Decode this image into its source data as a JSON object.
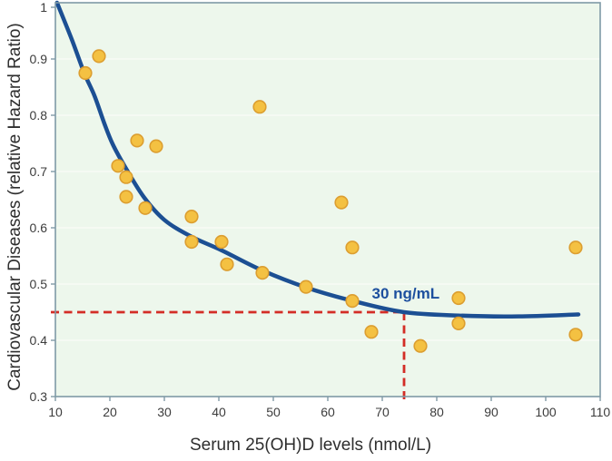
{
  "chart_data": {
    "type": "scatter",
    "title": "",
    "xlabel": "Serum 25(OH)D levels (nmol/L)",
    "ylabel": "Cardiovascular Diseases (relative Hazard Ratio)",
    "xlim": [
      10,
      110
    ],
    "ylim": [
      0.3,
      1.0
    ],
    "x_ticks": [
      10,
      20,
      30,
      40,
      50,
      60,
      70,
      80,
      90,
      100,
      110
    ],
    "y_ticks": [
      1,
      0.9,
      0.8,
      0.7,
      0.6,
      0.5,
      0.4,
      0.3
    ],
    "y_tick_labels": [
      "1",
      "0.9",
      "0.8",
      "0.7",
      "0.6",
      "0.5",
      "0.4",
      "0.3"
    ],
    "grid": "horizontal-faint",
    "legend": "none",
    "points": [
      [
        15.5,
        0.875
      ],
      [
        18,
        0.905
      ],
      [
        21.5,
        0.71
      ],
      [
        23,
        0.69
      ],
      [
        23,
        0.655
      ],
      [
        25,
        0.755
      ],
      [
        26.5,
        0.635
      ],
      [
        28.5,
        0.745
      ],
      [
        35,
        0.62
      ],
      [
        35,
        0.575
      ],
      [
        40.5,
        0.575
      ],
      [
        41.5,
        0.535
      ],
      [
        47.5,
        0.815
      ],
      [
        48,
        0.52
      ],
      [
        56,
        0.495
      ],
      [
        62.5,
        0.645
      ],
      [
        64.5,
        0.565
      ],
      [
        64.5,
        0.47
      ],
      [
        68,
        0.415
      ],
      [
        77,
        0.39
      ],
      [
        84,
        0.475
      ],
      [
        84,
        0.43
      ],
      [
        105.5,
        0.565
      ],
      [
        105.5,
        0.41
      ]
    ],
    "trend_curve": [
      [
        10.3,
        1.0
      ],
      [
        13,
        0.935
      ],
      [
        15.3,
        0.875
      ],
      [
        17.2,
        0.834
      ],
      [
        19,
        0.785
      ],
      [
        20.5,
        0.749
      ],
      [
        22.8,
        0.708
      ],
      [
        26.2,
        0.655
      ],
      [
        30,
        0.614
      ],
      [
        35,
        0.584
      ],
      [
        40.5,
        0.56
      ],
      [
        48,
        0.524
      ],
      [
        56,
        0.494
      ],
      [
        65,
        0.469
      ],
      [
        74,
        0.45
      ],
      [
        84,
        0.444
      ],
      [
        95,
        0.4425
      ],
      [
        106,
        0.446
      ]
    ],
    "reference_lines": {
      "h_y": 0.45,
      "v_x": 74,
      "style": "dashed"
    },
    "annotation": {
      "text": "30 ng/mL",
      "x": 74.3,
      "y": 0.484
    },
    "colors": {
      "plot_bg": "#edf7ec",
      "page_bg": "#ffffff",
      "axis": "#7f9aa6",
      "grid": "#f8fcf5",
      "curve": "#1c4f93",
      "point_fill": "#f4c142",
      "point_stroke": "#dc9e30",
      "reference": "#d32d26",
      "tick_text": "#3c3c3c",
      "axis_title_text": "#2e2e2e",
      "annotation_text": "#1d4f9e"
    }
  }
}
